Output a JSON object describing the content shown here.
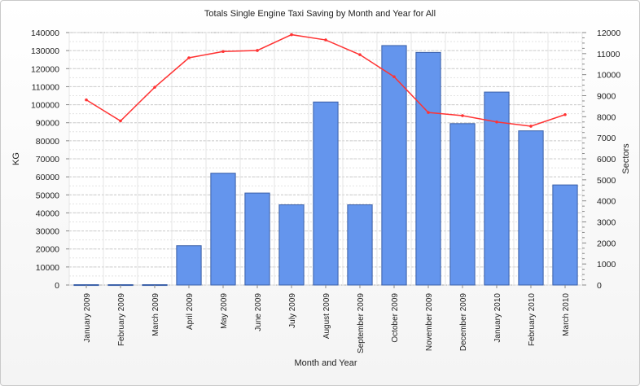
{
  "chart_data": {
    "type": "bar",
    "title": "Totals Single Engine Taxi Saving by Month and Year for All",
    "xlabel": "Month and Year",
    "ylabel": "KG",
    "y2label": "Sectors",
    "categories": [
      "January 2009",
      "February 2009",
      "March 2009",
      "April 2009",
      "May 2009",
      "June 2009",
      "July 2009",
      "August 2009",
      "September 2009",
      "October 2009",
      "November 2009",
      "December 2009",
      "January 2010",
      "February 2010",
      "March 2010"
    ],
    "ylim": [
      0,
      140000
    ],
    "y2lim": [
      0,
      12000
    ],
    "yticks": [
      "0",
      "10000",
      "20000",
      "30000",
      "40000",
      "50000",
      "60000",
      "70000",
      "80000",
      "90000",
      "100000",
      "110000",
      "120000",
      "130000",
      "140000"
    ],
    "y2ticks": [
      "0",
      "1000",
      "2000",
      "3000",
      "4000",
      "5000",
      "6000",
      "7000",
      "8000",
      "9000",
      "10000",
      "11000",
      "12000"
    ],
    "series": [
      {
        "type": "bar",
        "axis": "left",
        "color": "#6495ed",
        "values": [
          200,
          200,
          200,
          21800,
          62000,
          51000,
          44500,
          101500,
          44500,
          132800,
          129000,
          89500,
          107000,
          85500,
          55500
        ]
      },
      {
        "type": "line",
        "axis": "right",
        "color": "#ff3333",
        "values": [
          8800,
          7800,
          9400,
          10800,
          11100,
          11150,
          11900,
          11650,
          10950,
          9900,
          8200,
          8050,
          7750,
          7550,
          8100
        ]
      }
    ],
    "grid": true,
    "legend": "none"
  }
}
